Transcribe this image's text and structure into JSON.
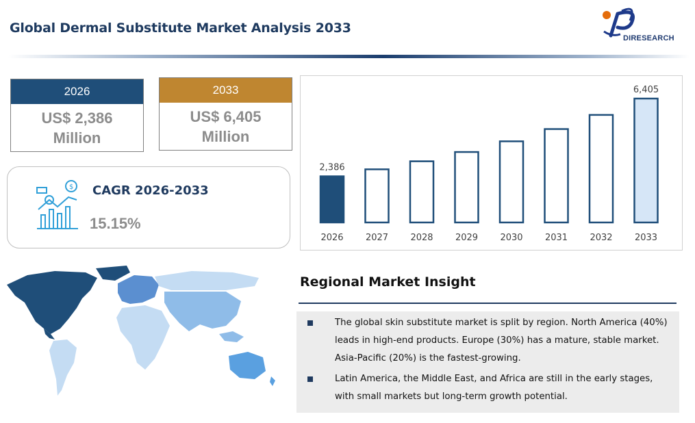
{
  "header": {
    "title": "Global Dermal Substitute Market Analysis 2033",
    "logo_text": "DIRESEARCH"
  },
  "stats": {
    "start": {
      "year": "2026",
      "value": "US$ 2,386",
      "unit": "Million",
      "color": "#1f4e79"
    },
    "end": {
      "year": "2033",
      "value": "US$ 6,405",
      "unit": "Million",
      "color": "#bf8630"
    },
    "cagr_label": "CAGR 2026-2033",
    "cagr_value": "15.15%"
  },
  "chart_data": {
    "type": "bar",
    "categories": [
      "2026",
      "2027",
      "2028",
      "2029",
      "2030",
      "2031",
      "2032",
      "2033"
    ],
    "values": [
      2386,
      2747,
      3163,
      3642,
      4194,
      4829,
      5560,
      6405
    ],
    "data_labels": {
      "2026": "2,386",
      "2033": "6,405"
    },
    "colors": {
      "first_fill": "#1f4e79",
      "last_fill": "#d6e6f7",
      "outline": "#1f4e79"
    },
    "ylim": [
      0,
      6405
    ],
    "grid": false
  },
  "insight": {
    "title": "Regional Market Insight",
    "bullets": [
      "The global skin substitute market is split by region. North America (40%) leads in high-end products. Europe (30%) has a mature, stable market. Asia-Pacific (20%) is the fastest-growing.",
      "Latin America, the Middle East, and Africa are still in the early stages, with small markets but long-term growth potential."
    ]
  },
  "map": {
    "icon": "world-map",
    "colors": {
      "north_america": "#1f4e79",
      "europe": "#5b8fd0",
      "asia_pacific": "#8fbce8",
      "other": "#c4dcf3"
    }
  }
}
